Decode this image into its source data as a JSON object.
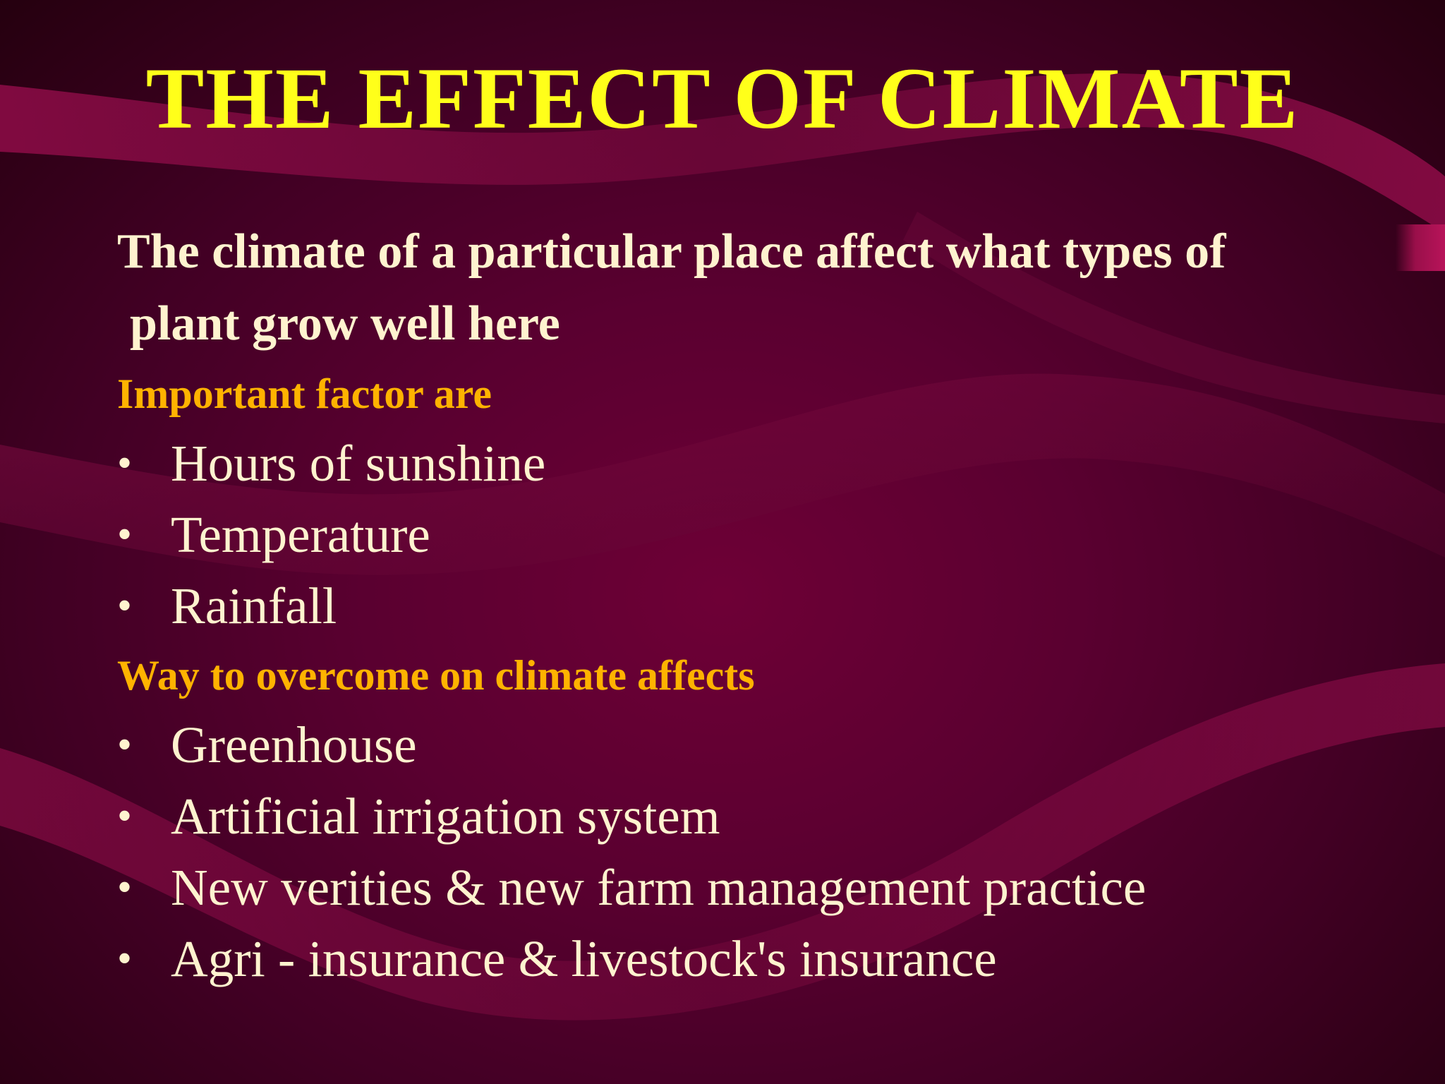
{
  "slide": {
    "title": "THE EFFECT OF CLIMATE",
    "intro": {
      "line1": "The climate of a particular place affect what types of",
      "line2": "plant grow well here"
    },
    "sections": [
      {
        "heading": "Important factor are",
        "items": [
          "Hours of sunshine",
          "Temperature",
          "Rainfall"
        ]
      },
      {
        "heading": "Way to overcome on climate affects",
        "items": [
          "Greenhouse",
          "Artificial irrigation system",
          "New verities & new farm management practice",
          "Agri - insurance & livestock's insurance"
        ]
      }
    ],
    "bullet_glyph": "•"
  },
  "colors": {
    "background": "#5a0030",
    "title": "#ffff1a",
    "heading": "#ffb300",
    "body_text": "#fff3cf",
    "swoosh": "#8a0a44"
  }
}
